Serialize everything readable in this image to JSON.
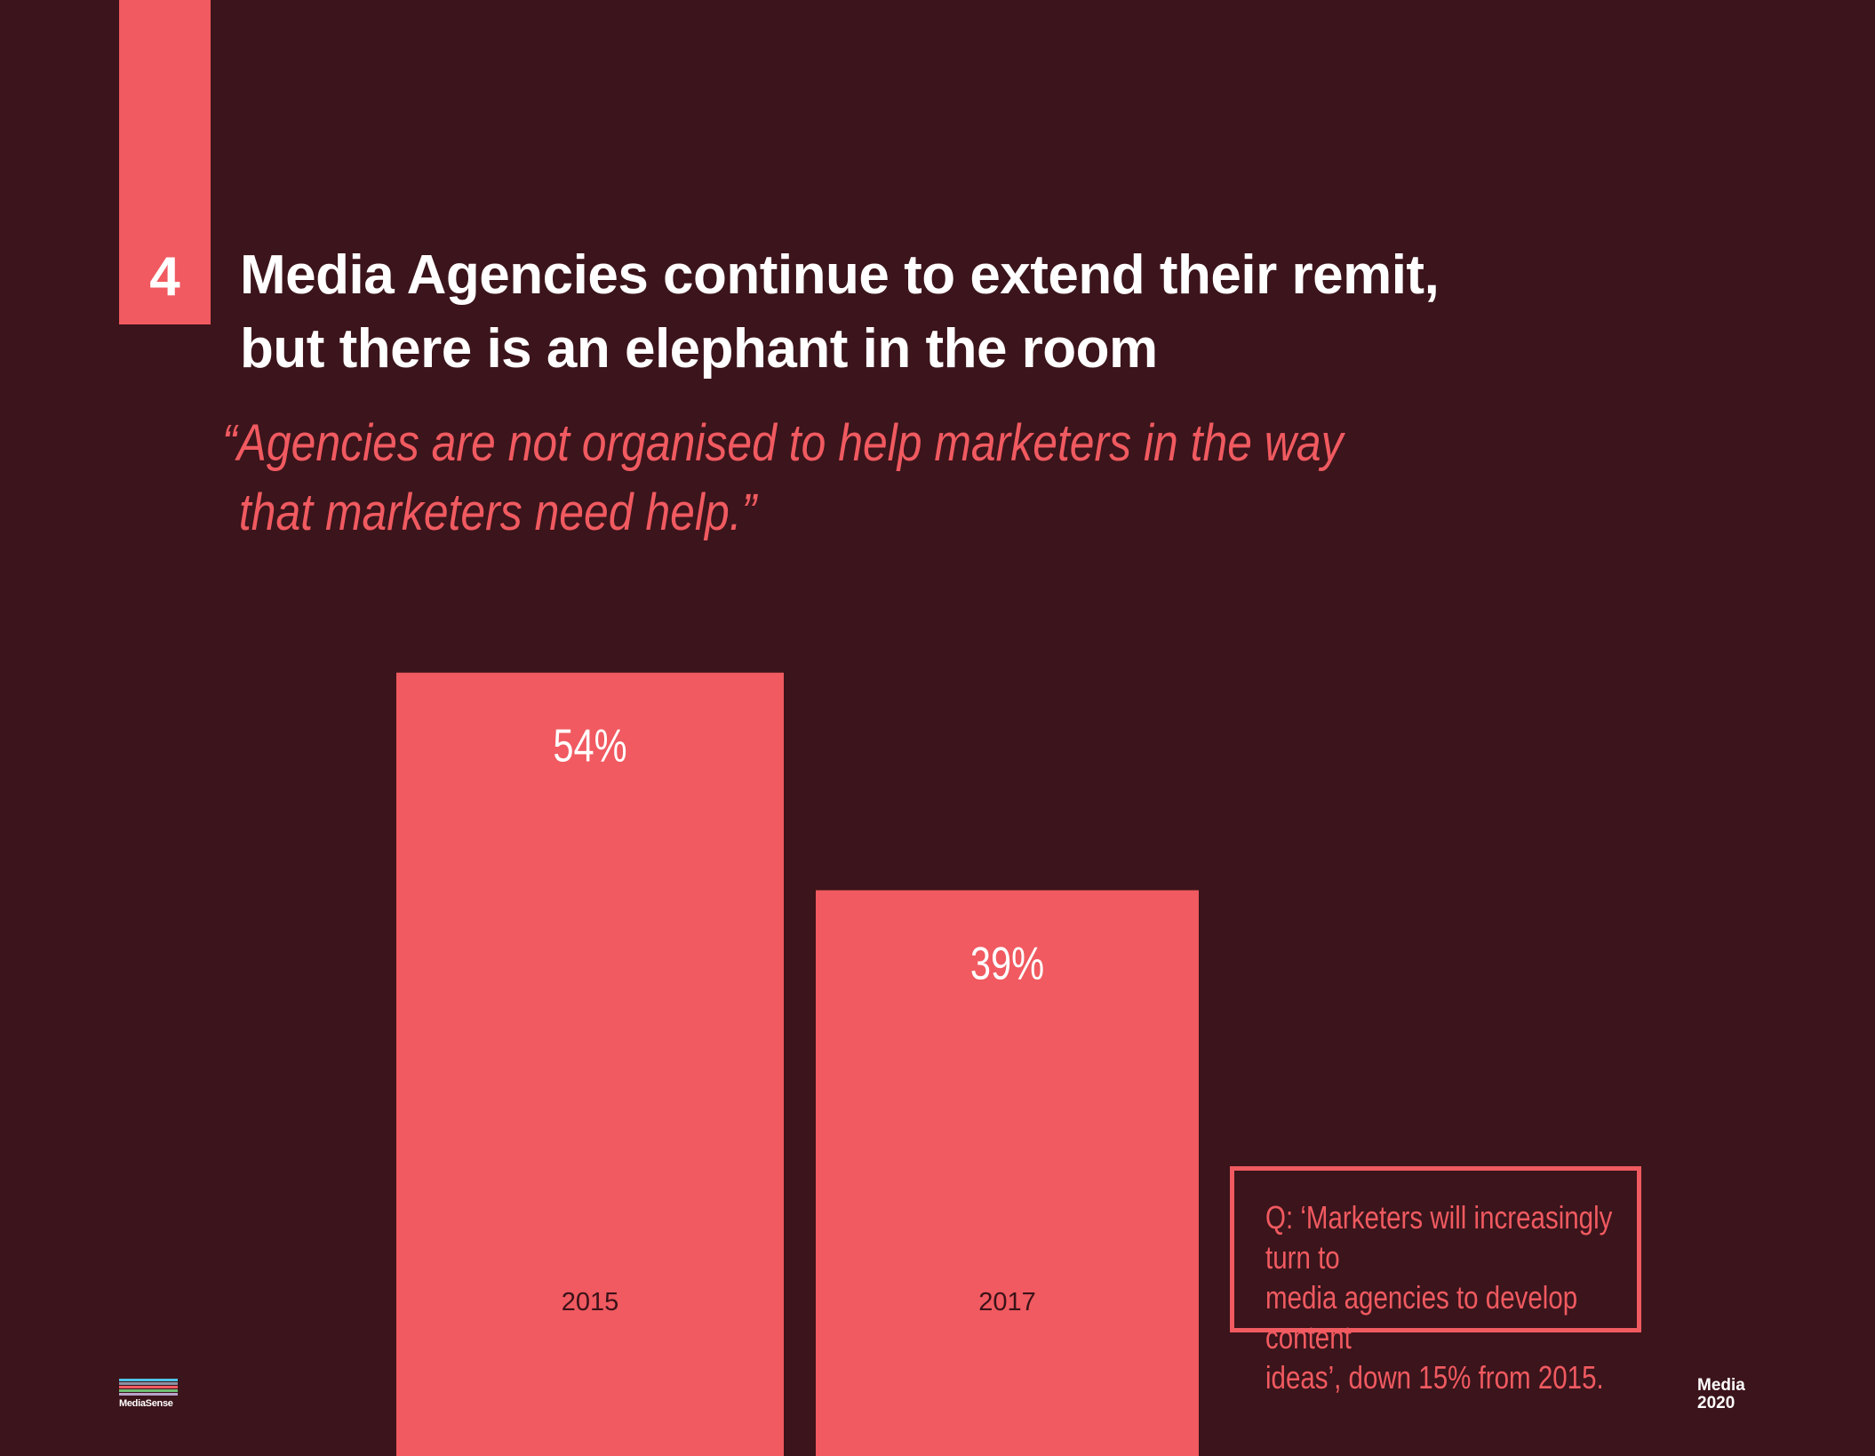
{
  "section": {
    "number": "4"
  },
  "headline": {
    "line1": "Media Agencies continue to extend their remit,",
    "line2": "but there is an elephant in the room"
  },
  "quote": {
    "line1": "“Agencies are not organised to help marketers in the way",
    "line2": "that marketers need help.”"
  },
  "colors": {
    "background": "#3c141b",
    "accent": "#f05a60",
    "text": "#ffffff"
  },
  "chart_data": {
    "type": "bar",
    "title": "",
    "xlabel": "",
    "ylabel": "",
    "unit": "%",
    "categories": [
      "2015",
      "2017"
    ],
    "values": [
      54,
      39
    ],
    "value_labels": [
      "54%",
      "39%"
    ],
    "ylim": [
      0,
      54
    ],
    "grid": false,
    "legend": "none"
  },
  "note": {
    "text": "Q: ‘Marketers will increasingly turn to\nmedia agencies to develop content\nideas’, down 15% from 2015."
  },
  "footer": {
    "brand_logo": "MediaSense",
    "publication_line1": "Media",
    "publication_line2": "2020"
  }
}
